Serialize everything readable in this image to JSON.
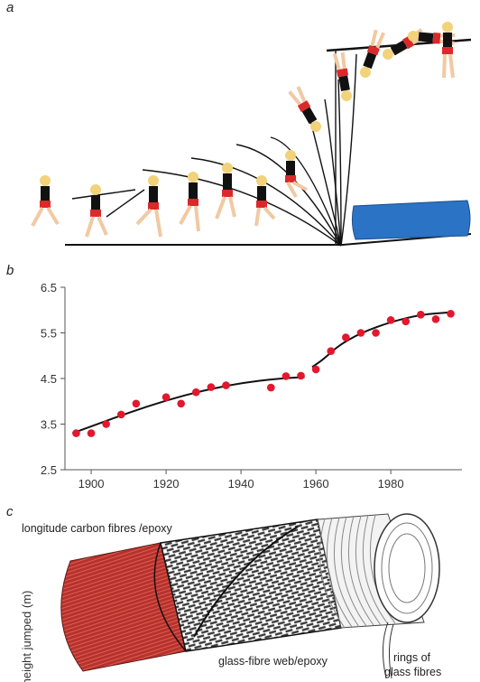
{
  "panels": {
    "a": "a",
    "b": "b",
    "c": "c"
  },
  "chart_data": {
    "type": "scatter",
    "title": "",
    "xlabel": "",
    "ylabel": "height jumped (m)",
    "xlim": [
      1893,
      1999
    ],
    "ylim": [
      2.5,
      6.5
    ],
    "xticks": [
      1900,
      1920,
      1940,
      1960,
      1980
    ],
    "yticks": [
      2.5,
      3.5,
      4.5,
      5.5,
      6.5
    ],
    "ytick_labels": [
      "2.5",
      "3.5",
      "4.5",
      "5.5",
      "6.5"
    ],
    "grid": false,
    "marker_color": "#e3172d",
    "points": [
      {
        "x": 1896,
        "y": 3.3
      },
      {
        "x": 1900,
        "y": 3.3
      },
      {
        "x": 1904,
        "y": 3.5
      },
      {
        "x": 1908,
        "y": 3.71
      },
      {
        "x": 1912,
        "y": 3.95
      },
      {
        "x": 1920,
        "y": 4.09
      },
      {
        "x": 1924,
        "y": 3.95
      },
      {
        "x": 1928,
        "y": 4.2
      },
      {
        "x": 1932,
        "y": 4.31
      },
      {
        "x": 1936,
        "y": 4.35
      },
      {
        "x": 1948,
        "y": 4.3
      },
      {
        "x": 1952,
        "y": 4.55
      },
      {
        "x": 1956,
        "y": 4.56
      },
      {
        "x": 1960,
        "y": 4.7
      },
      {
        "x": 1964,
        "y": 5.1
      },
      {
        "x": 1968,
        "y": 5.4
      },
      {
        "x": 1972,
        "y": 5.5
      },
      {
        "x": 1976,
        "y": 5.5
      },
      {
        "x": 1980,
        "y": 5.78
      },
      {
        "x": 1984,
        "y": 5.75
      },
      {
        "x": 1988,
        "y": 5.9
      },
      {
        "x": 1992,
        "y": 5.8
      },
      {
        "x": 1996,
        "y": 5.92
      }
    ],
    "fit_segments": [
      [
        [
          1895,
          3.3
        ],
        [
          1900,
          3.45
        ],
        [
          1910,
          3.75
        ],
        [
          1920,
          4.02
        ],
        [
          1930,
          4.24
        ],
        [
          1940,
          4.4
        ],
        [
          1950,
          4.5
        ],
        [
          1957,
          4.53
        ]
      ],
      [
        [
          1959,
          4.75
        ],
        [
          1962,
          4.92
        ],
        [
          1966,
          5.22
        ],
        [
          1972,
          5.5
        ],
        [
          1980,
          5.74
        ],
        [
          1988,
          5.9
        ],
        [
          1996,
          5.95
        ]
      ]
    ]
  },
  "tube_labels": {
    "carbon": "longitude carbon fibres /epoxy",
    "glass_web": "glass-fibre web/epoxy",
    "rings_line1": "rings of",
    "rings_line2": "glass fibres"
  },
  "colors": {
    "mat": "#2b73c4",
    "carbon": "#b8312c",
    "weave": "#3a3a3a",
    "shorts": "#d9292a",
    "hair": "#f2d27a",
    "skin": "#f1c9a3"
  }
}
